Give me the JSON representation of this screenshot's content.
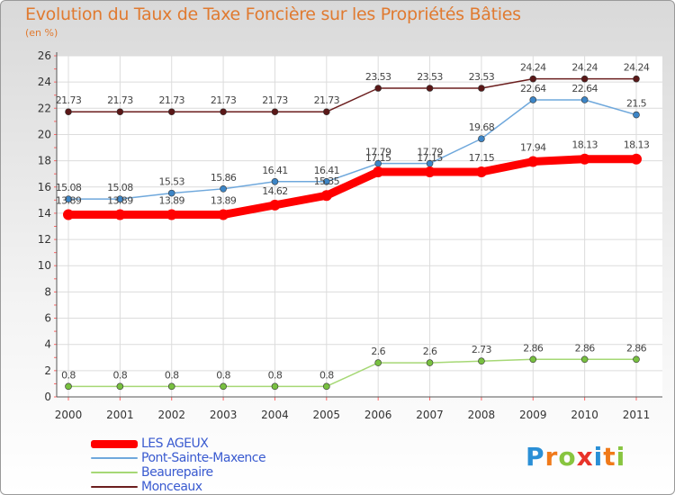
{
  "header": {
    "title": "Evolution du Taux de Taxe Foncière sur les Propriétés Bâties",
    "subtitle": "(en %)"
  },
  "logo": {
    "text": "Proxiti",
    "letters": [
      {
        "ch": "P",
        "color": "#2a8fd6"
      },
      {
        "ch": "r",
        "color": "#f07a1a"
      },
      {
        "ch": "o",
        "color": "#88c540"
      },
      {
        "ch": "x",
        "color": "#e8332a"
      },
      {
        "ch": "i",
        "color": "#2a8fd6"
      },
      {
        "ch": "t",
        "color": "#f07a1a"
      },
      {
        "ch": "i",
        "color": "#88c540"
      }
    ]
  },
  "chart_data": {
    "type": "line",
    "title": "Evolution du Taux de Taxe Foncière sur les Propriétés Bâties",
    "ylabel": "(en %)",
    "xlabel": "",
    "categories": [
      "2000",
      "2001",
      "2002",
      "2003",
      "2004",
      "2005",
      "2006",
      "2007",
      "2008",
      "2009",
      "2010",
      "2011"
    ],
    "ylim": [
      0,
      26
    ],
    "yticks": [
      0,
      2,
      4,
      6,
      8,
      10,
      12,
      14,
      16,
      18,
      20,
      22,
      24,
      26
    ],
    "grid": true,
    "legend_position": "bottom-left",
    "series": [
      {
        "name": "Monceaux",
        "color": "#6b1e1e",
        "marker": "#5a1818",
        "values": [
          21.73,
          21.73,
          21.73,
          21.73,
          21.73,
          21.73,
          23.53,
          23.53,
          23.53,
          24.24,
          24.24,
          24.24
        ],
        "labels": [
          "21.73",
          "21.73",
          "21.73",
          "21.73",
          "21.73",
          "21.73",
          "23.53",
          "23.53",
          "23.53",
          "24.24",
          "24.24",
          "24.24"
        ]
      },
      {
        "name": "Pont-Sainte-Maxence",
        "color": "#6fa8dc",
        "marker": "#3d85c6",
        "values": [
          15.08,
          15.08,
          15.53,
          15.86,
          16.41,
          16.41,
          17.79,
          17.79,
          19.68,
          22.64,
          22.64,
          21.5
        ],
        "labels": [
          "15.08",
          "15.08",
          "15.53",
          "15.86",
          "16.41",
          "16.41",
          "17.79",
          "17.79",
          "19.68",
          "22.64",
          "22.64",
          "21.5"
        ]
      },
      {
        "name": "LES AGEUX",
        "color": "#ff0000",
        "marker": "#ff0000",
        "values": [
          13.89,
          13.89,
          13.89,
          13.89,
          14.62,
          15.35,
          17.15,
          17.15,
          17.15,
          17.94,
          18.13,
          18.13
        ],
        "labels": [
          "13.89",
          "13.89",
          "13.89",
          "13.89",
          "14.62",
          "15.35",
          "17.15",
          "17.15",
          "17.15",
          "17.94",
          "18.13",
          "18.13"
        ]
      },
      {
        "name": "Beaurepaire",
        "color": "#a6d875",
        "marker": "#78c040",
        "values": [
          0.8,
          0.8,
          0.8,
          0.8,
          0.8,
          0.8,
          2.6,
          2.6,
          2.73,
          2.86,
          2.86,
          2.86
        ],
        "labels": [
          "0.8",
          "0.8",
          "0.8",
          "0.8",
          "0.8",
          "0.8",
          "2.6",
          "2.6",
          "2.73",
          "2.86",
          "2.86",
          "2.86"
        ]
      }
    ],
    "legend": [
      {
        "name": "LES AGEUX",
        "color": "#ff0000"
      },
      {
        "name": "Pont-Sainte-Maxence",
        "color": "#6fa8dc"
      },
      {
        "name": "Beaurepaire",
        "color": "#a6d875"
      },
      {
        "name": "Monceaux",
        "color": "#6b1e1e"
      }
    ]
  }
}
